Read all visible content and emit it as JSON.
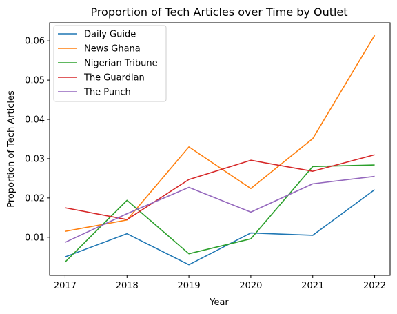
{
  "chart_data": {
    "type": "line",
    "title": "Proportion of Tech Articles over Time by Outlet",
    "xlabel": "Year",
    "ylabel": "Proportion of Tech Articles",
    "x": [
      2017,
      2018,
      2019,
      2020,
      2021,
      2022
    ],
    "x_ticks": [
      "2017",
      "2018",
      "2019",
      "2020",
      "2021",
      "2022"
    ],
    "y_ticks": [
      "0.01",
      "0.02",
      "0.03",
      "0.04",
      "0.05",
      "0.06"
    ],
    "xlim": [
      2016.75,
      2022.25
    ],
    "ylim": [
      0.0003,
      0.0646
    ],
    "grid": false,
    "legend_position": "upper-left",
    "series": [
      {
        "name": "Daily Guide",
        "color": "#1f77b4",
        "values": [
          0.005,
          0.0109,
          0.003,
          0.0111,
          0.0105,
          0.0221
        ]
      },
      {
        "name": "News Ghana",
        "color": "#ff7f0e",
        "values": [
          0.0115,
          0.0144,
          0.033,
          0.0224,
          0.0351,
          0.0614
        ]
      },
      {
        "name": "Nigerian Tribune",
        "color": "#2ca02c",
        "values": [
          0.0037,
          0.0194,
          0.0058,
          0.0096,
          0.028,
          0.0284
        ]
      },
      {
        "name": "The Guardian",
        "color": "#d62728",
        "values": [
          0.0175,
          0.0145,
          0.0247,
          0.0296,
          0.0268,
          0.031
        ]
      },
      {
        "name": "The Punch",
        "color": "#9467bd",
        "values": [
          0.0087,
          0.016,
          0.0227,
          0.0164,
          0.0236,
          0.0255
        ]
      }
    ]
  }
}
